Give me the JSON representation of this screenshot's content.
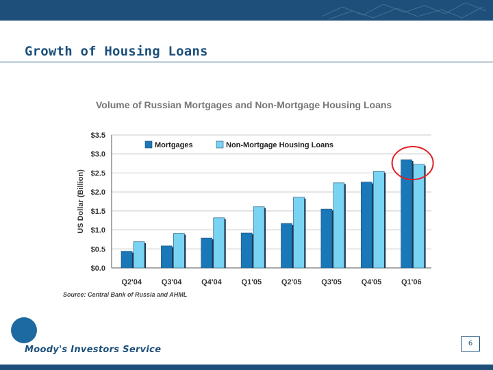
{
  "slide": {
    "title": "Growth of Housing Loans",
    "company": "Moody's Investors Service",
    "page_number": "6",
    "brand_color": "#1d4f7a"
  },
  "chart_data": {
    "type": "bar",
    "title": "Volume of Russian Mortgages and Non-Mortgage Housing Loans",
    "ylabel": "US Dollar (Billion)",
    "xlabel": "",
    "categories": [
      "Q2'04",
      "Q3'04",
      "Q4'04",
      "Q1'05",
      "Q2'05",
      "Q3'05",
      "Q4'05",
      "Q1'06"
    ],
    "series": [
      {
        "name": "Mortgages",
        "color": "#1a78b8",
        "values": [
          0.44,
          0.58,
          0.79,
          0.92,
          1.17,
          1.55,
          2.26,
          2.85
        ]
      },
      {
        "name": "Non-Mortgage Housing Loans",
        "color": "#79d3f2",
        "values": [
          0.69,
          0.91,
          1.32,
          1.61,
          1.86,
          2.24,
          2.54,
          2.73
        ]
      }
    ],
    "ylim": [
      0,
      3.5
    ],
    "yticks": [
      "$0.0",
      "$0.5",
      "$1.0",
      "$1.5",
      "$2.0",
      "$2.5",
      "$3.0",
      "$3.5"
    ],
    "yticks_values": [
      0,
      0.5,
      1.0,
      1.5,
      2.0,
      2.5,
      3.0,
      3.5
    ],
    "grid": true,
    "legend": "top-left",
    "source": "Source: Central Bank of Russia and AHML",
    "highlight": {
      "category": "Q1'06",
      "color": "#e02020"
    }
  }
}
